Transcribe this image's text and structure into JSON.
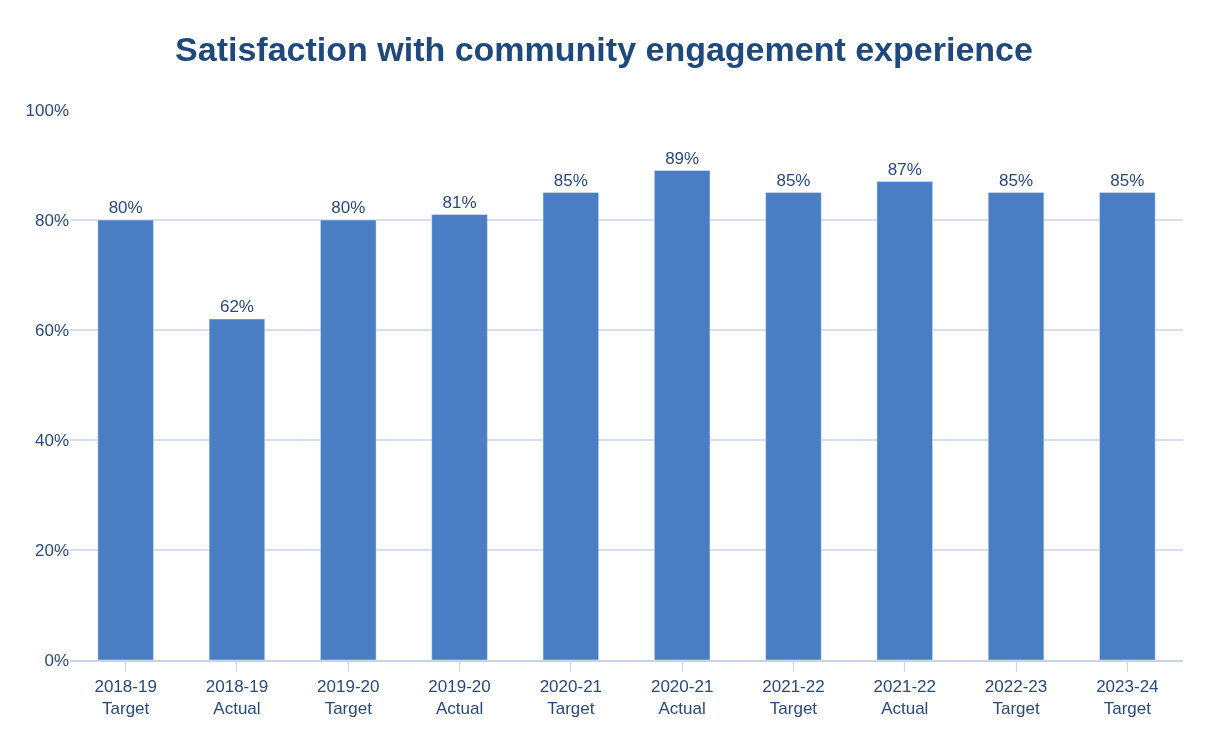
{
  "chart_data": {
    "type": "bar",
    "title": "Satisfaction with community engagement experience",
    "categories": [
      "2018-19 Target",
      "2018-19 Actual",
      "2019-20 Target",
      "2019-20 Actual",
      "2020-21 Target",
      "2020-21 Actual",
      "2021-22 Target",
      "2021-22 Actual",
      "2022-23 Target",
      "2023-24 Target"
    ],
    "values": [
      80,
      62,
      80,
      81,
      85,
      89,
      85,
      87,
      85,
      85
    ],
    "value_labels": [
      "80%",
      "62%",
      "80%",
      "81%",
      "85%",
      "89%",
      "85%",
      "87%",
      "85%",
      "85%"
    ],
    "color": "#4a7ec4",
    "ylim": [
      0,
      100
    ],
    "yticks": [
      {
        "value": 0,
        "label": "0%"
      },
      {
        "value": 20,
        "label": "20%"
      },
      {
        "value": 40,
        "label": "40%"
      },
      {
        "value": 60,
        "label": "60%"
      },
      {
        "value": 80,
        "label": "80%"
      },
      {
        "value": 100,
        "label": "100%"
      }
    ],
    "grid": "y",
    "legend": false
  }
}
